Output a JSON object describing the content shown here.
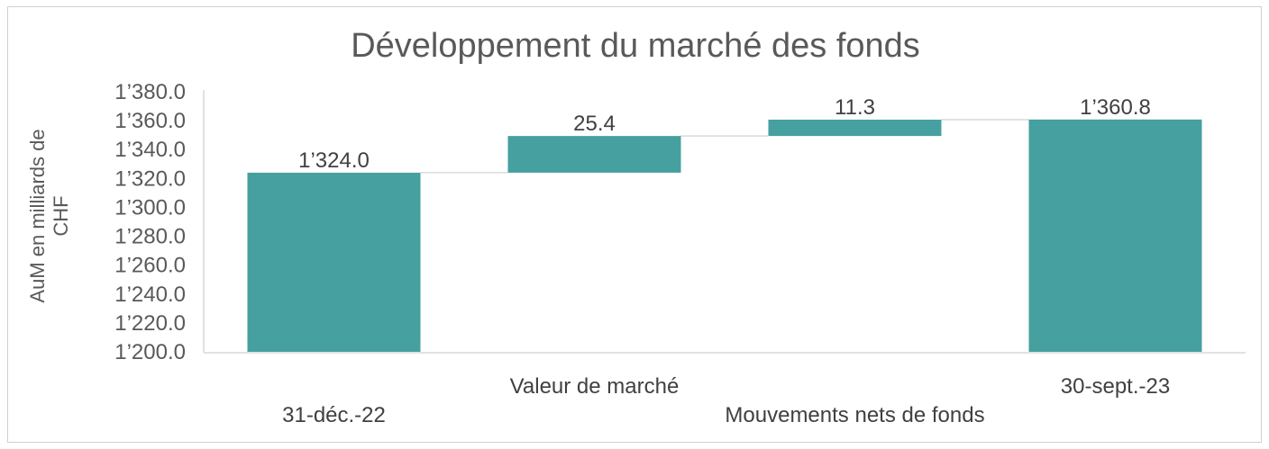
{
  "chart_data": {
    "type": "bar",
    "subtype": "waterfall",
    "title": "Développement du marché des fonds",
    "ylabel_lines": [
      "AuM en milliards de",
      "CHF"
    ],
    "xlabel": "",
    "ylim": [
      1200,
      1380
    ],
    "yticks": [
      1200,
      1220,
      1240,
      1260,
      1280,
      1300,
      1320,
      1340,
      1360,
      1380
    ],
    "ytick_labels": [
      "1’200.0",
      "1’220.0",
      "1’240.0",
      "1’260.0",
      "1’280.0",
      "1’300.0",
      "1’320.0",
      "1’340.0",
      "1’360.0",
      "1’380.0"
    ],
    "categories": [
      "31-déc.-22",
      "Valeur de marché",
      "Mouvements nets de fonds",
      "30-sept.-23"
    ],
    "bars": [
      {
        "category": "31-déc.-22",
        "kind": "total",
        "start": 1200,
        "end": 1324.0,
        "label": "1’324.0"
      },
      {
        "category": "Valeur de marché",
        "kind": "delta",
        "start": 1324.0,
        "end": 1349.4,
        "label": "25.4"
      },
      {
        "category": "Mouvements nets de fonds",
        "kind": "delta",
        "start": 1349.4,
        "end": 1360.7,
        "label": "11.3"
      },
      {
        "category": "30-sept.-23",
        "kind": "total",
        "start": 1200,
        "end": 1360.8,
        "label": "1’360.8"
      }
    ],
    "grid": false,
    "legend": "none",
    "bar_color": "#46a09f"
  }
}
